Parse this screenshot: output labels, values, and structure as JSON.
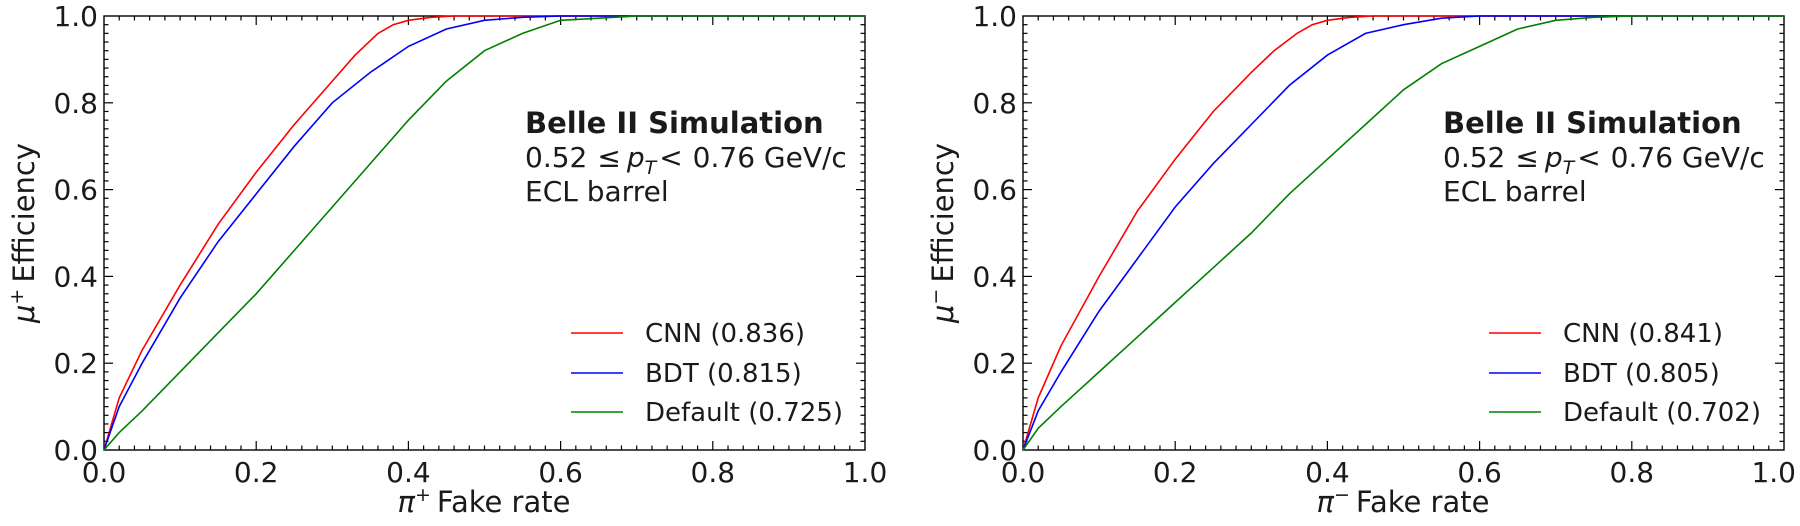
{
  "chart_data": [
    {
      "type": "line",
      "id": "left",
      "xlabel": {
        "symbol": "π",
        "sup": "+",
        "text": "Fake rate"
      },
      "ylabel": {
        "symbol": "μ",
        "sup": "+",
        "text": "Efficiency"
      },
      "xlim": [
        0,
        1
      ],
      "ylim": [
        0,
        1
      ],
      "xticks": [
        "0.0",
        "0.2",
        "0.4",
        "0.6",
        "0.8",
        "1.0"
      ],
      "yticks": [
        "0.0",
        "0.2",
        "0.4",
        "0.6",
        "0.8",
        "1.0"
      ],
      "annotation": {
        "title": "Belle II Simulation",
        "line1_prefix": "0.52",
        "line1_le": "≤",
        "line1_var": "p",
        "line1_sub": "T",
        "line1_lt": "<",
        "line1_suffix": "0.76 GeV/c",
        "line2": "ECL barrel"
      },
      "legend_position": "lower-right",
      "series": [
        {
          "name": "CNN (0.836)",
          "color": "#ff0000",
          "x": [
            0,
            0.02,
            0.05,
            0.1,
            0.15,
            0.2,
            0.25,
            0.3,
            0.33,
            0.36,
            0.38,
            0.4,
            0.43,
            0.46,
            0.5,
            0.6,
            0.8,
            1.0
          ],
          "y": [
            0,
            0.12,
            0.23,
            0.38,
            0.52,
            0.64,
            0.75,
            0.85,
            0.91,
            0.96,
            0.98,
            0.99,
            0.997,
            1.0,
            1.0,
            1.0,
            1.0,
            1.0
          ]
        },
        {
          "name": "BDT (0.815)",
          "color": "#0000ff",
          "x": [
            0,
            0.02,
            0.05,
            0.1,
            0.15,
            0.2,
            0.25,
            0.3,
            0.35,
            0.4,
            0.45,
            0.5,
            0.55,
            0.6,
            0.7,
            0.8,
            1.0
          ],
          "y": [
            0,
            0.1,
            0.2,
            0.35,
            0.48,
            0.59,
            0.7,
            0.8,
            0.87,
            0.93,
            0.97,
            0.99,
            0.997,
            1.0,
            1.0,
            1.0,
            1.0
          ]
        },
        {
          "name": "Default (0.725)",
          "color": "#008000",
          "x": [
            0,
            0.02,
            0.05,
            0.1,
            0.15,
            0.2,
            0.25,
            0.3,
            0.35,
            0.4,
            0.45,
            0.5,
            0.55,
            0.6,
            0.65,
            0.7,
            0.8,
            1.0
          ],
          "y": [
            0,
            0.04,
            0.09,
            0.18,
            0.27,
            0.36,
            0.46,
            0.56,
            0.66,
            0.76,
            0.85,
            0.92,
            0.96,
            0.99,
            0.995,
            1.0,
            1.0,
            1.0
          ]
        }
      ]
    },
    {
      "type": "line",
      "id": "right",
      "xlabel": {
        "symbol": "π",
        "sup": "−",
        "text": "Fake rate"
      },
      "ylabel": {
        "symbol": "μ",
        "sup": "−",
        "text": "Efficiency"
      },
      "xlim": [
        0,
        1
      ],
      "ylim": [
        0,
        1
      ],
      "xticks": [
        "0.0",
        "0.2",
        "0.4",
        "0.6",
        "0.8",
        "1.0"
      ],
      "yticks": [
        "0.0",
        "0.2",
        "0.4",
        "0.6",
        "0.8",
        "1.0"
      ],
      "annotation": {
        "title": "Belle II Simulation",
        "line1_prefix": "0.52",
        "line1_le": "≤",
        "line1_var": "p",
        "line1_sub": "T",
        "line1_lt": "<",
        "line1_suffix": "0.76 GeV/c",
        "line2": "ECL barrel"
      },
      "legend_position": "lower-right",
      "series": [
        {
          "name": "CNN (0.841)",
          "color": "#ff0000",
          "x": [
            0,
            0.02,
            0.05,
            0.1,
            0.15,
            0.2,
            0.25,
            0.3,
            0.33,
            0.36,
            0.38,
            0.4,
            0.43,
            0.46,
            0.5,
            0.6,
            0.8,
            1.0
          ],
          "y": [
            0,
            0.12,
            0.24,
            0.4,
            0.55,
            0.67,
            0.78,
            0.87,
            0.92,
            0.96,
            0.98,
            0.99,
            0.997,
            1.0,
            1.0,
            1.0,
            1.0,
            1.0
          ]
        },
        {
          "name": "BDT (0.805)",
          "color": "#0000ff",
          "x": [
            0,
            0.02,
            0.05,
            0.1,
            0.15,
            0.2,
            0.25,
            0.3,
            0.35,
            0.4,
            0.45,
            0.5,
            0.55,
            0.6,
            0.7,
            0.8,
            1.0
          ],
          "y": [
            0,
            0.09,
            0.18,
            0.32,
            0.44,
            0.56,
            0.66,
            0.75,
            0.84,
            0.91,
            0.96,
            0.98,
            0.995,
            1.0,
            1.0,
            1.0,
            1.0
          ]
        },
        {
          "name": "Default (0.702)",
          "color": "#008000",
          "x": [
            0,
            0.02,
            0.05,
            0.1,
            0.15,
            0.2,
            0.25,
            0.3,
            0.35,
            0.4,
            0.45,
            0.5,
            0.55,
            0.6,
            0.65,
            0.7,
            0.75,
            0.8,
            1.0
          ],
          "y": [
            0,
            0.05,
            0.1,
            0.18,
            0.26,
            0.34,
            0.42,
            0.5,
            0.59,
            0.67,
            0.75,
            0.83,
            0.89,
            0.93,
            0.97,
            0.99,
            0.997,
            1.0,
            1.0
          ]
        }
      ]
    }
  ]
}
